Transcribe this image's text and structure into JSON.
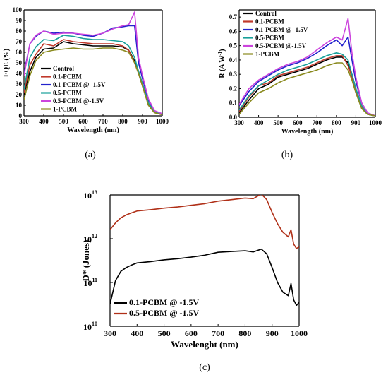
{
  "panel_labels": [
    "(a)",
    "(b)",
    "(c)"
  ],
  "chart_data": [
    {
      "type": "line",
      "xlabel": "Wavelength (nm)",
      "ylabel": "EQE (%)",
      "xlim": [
        300,
        1000
      ],
      "ylim": [
        0,
        100
      ],
      "xticks": [
        300,
        400,
        500,
        600,
        700,
        800,
        900,
        1000
      ],
      "yticks": [
        0,
        10,
        20,
        30,
        40,
        50,
        60,
        70,
        80,
        90,
        100
      ],
      "legend_position": "lower-left",
      "x": [
        300,
        330,
        360,
        400,
        450,
        500,
        550,
        600,
        650,
        700,
        750,
        800,
        830,
        860,
        880,
        900,
        930,
        960,
        1000
      ],
      "series": [
        {
          "name": "Control",
          "color": "#000000",
          "values": [
            20,
            42,
            55,
            63,
            64,
            70,
            68,
            67,
            66,
            66,
            66,
            65,
            62,
            52,
            42,
            30,
            12,
            4,
            1
          ]
        },
        {
          "name": "0.1-PCBM",
          "color": "#c0392b",
          "values": [
            22,
            48,
            58,
            68,
            66,
            72,
            70,
            69,
            68,
            68,
            68,
            66,
            62,
            50,
            40,
            28,
            10,
            3,
            1
          ]
        },
        {
          "name": "0.1-PCBM @ -1.5V",
          "color": "#2222cc",
          "values": [
            40,
            68,
            75,
            80,
            78,
            79,
            78,
            76,
            75,
            78,
            83,
            84,
            85,
            85,
            50,
            35,
            15,
            4,
            2
          ]
        },
        {
          "name": "0.5-PCBM",
          "color": "#18a09a",
          "values": [
            25,
            55,
            65,
            72,
            71,
            76,
            75,
            73,
            72,
            72,
            71,
            70,
            66,
            55,
            42,
            30,
            12,
            4,
            1
          ]
        },
        {
          "name": "0.5-PCBM @-1.5V",
          "color": "#cc44dd",
          "values": [
            38,
            68,
            76,
            80,
            77,
            78,
            78,
            77,
            76,
            78,
            82,
            85,
            86,
            98,
            55,
            38,
            16,
            5,
            2
          ]
        },
        {
          "name": "1-PCBM",
          "color": "#8a8a1e",
          "values": [
            15,
            38,
            52,
            60,
            62,
            63,
            64,
            63,
            63,
            64,
            64,
            62,
            60,
            50,
            40,
            28,
            10,
            3,
            1
          ]
        }
      ]
    },
    {
      "type": "line",
      "xlabel": "Wavelength (nm)",
      "ylabel": "R (A W",
      "ylabel_sup": "-1",
      "ylabel_end": ")",
      "xlim": [
        300,
        1000
      ],
      "ylim": [
        0,
        0.75
      ],
      "xticks": [
        300,
        400,
        500,
        600,
        700,
        800,
        900,
        1000
      ],
      "yticks": [
        "0.0",
        "0.1",
        "0.2",
        "0.3",
        "0.4",
        "0.5",
        "0.6",
        "0.7"
      ],
      "legend_position": "top-left",
      "x": [
        300,
        350,
        400,
        450,
        500,
        550,
        600,
        650,
        700,
        750,
        800,
        830,
        860,
        880,
        900,
        930,
        960,
        1000
      ],
      "series": [
        {
          "name": "Control",
          "color": "#000000",
          "values": [
            0.03,
            0.12,
            0.2,
            0.23,
            0.28,
            0.3,
            0.32,
            0.34,
            0.37,
            0.4,
            0.42,
            0.42,
            0.38,
            0.3,
            0.2,
            0.08,
            0.02,
            0.01
          ]
        },
        {
          "name": "0.1-PCBM",
          "color": "#c0392b",
          "values": [
            0.04,
            0.14,
            0.22,
            0.24,
            0.29,
            0.31,
            0.33,
            0.35,
            0.38,
            0.41,
            0.43,
            0.43,
            0.36,
            0.28,
            0.18,
            0.07,
            0.02,
            0.01
          ]
        },
        {
          "name": "0.1-PCBM @ -1.5V",
          "color": "#2222cc",
          "values": [
            0.08,
            0.18,
            0.25,
            0.29,
            0.33,
            0.36,
            0.38,
            0.41,
            0.45,
            0.5,
            0.54,
            0.5,
            0.56,
            0.4,
            0.25,
            0.1,
            0.03,
            0.01
          ]
        },
        {
          "name": "0.5-PCBM",
          "color": "#18a09a",
          "values": [
            0.05,
            0.15,
            0.22,
            0.26,
            0.3,
            0.33,
            0.35,
            0.37,
            0.4,
            0.43,
            0.45,
            0.44,
            0.4,
            0.3,
            0.2,
            0.08,
            0.02,
            0.01
          ]
        },
        {
          "name": "0.5-PCBM @-1.5V",
          "color": "#cc44dd",
          "values": [
            0.09,
            0.2,
            0.26,
            0.3,
            0.34,
            0.37,
            0.39,
            0.42,
            0.47,
            0.52,
            0.56,
            0.54,
            0.69,
            0.45,
            0.28,
            0.1,
            0.03,
            0.01
          ]
        },
        {
          "name": "1-PCBM",
          "color": "#8a8a1e",
          "values": [
            0.02,
            0.1,
            0.17,
            0.2,
            0.24,
            0.27,
            0.29,
            0.31,
            0.33,
            0.36,
            0.38,
            0.38,
            0.33,
            0.26,
            0.17,
            0.06,
            0.02,
            0.01
          ]
        }
      ]
    },
    {
      "type": "line",
      "xlabel": "Wavelenght (nm)",
      "ylabel": "D* (Jones)",
      "xlim": [
        300,
        1000
      ],
      "ylim": [
        10000000000.0,
        10000000000000.0
      ],
      "yscale": "log",
      "xticks": [
        300,
        400,
        500,
        600,
        700,
        800,
        900,
        1000
      ],
      "yticks": [
        {
          "base": "10",
          "exp": "10",
          "value": 10000000000.0
        },
        {
          "base": "10",
          "exp": "11",
          "value": 100000000000.0
        },
        {
          "base": "10",
          "exp": "12",
          "value": 1000000000000.0
        },
        {
          "base": "10",
          "exp": "13",
          "value": 10000000000000.0
        }
      ],
      "legend_position": "lower-left",
      "x": [
        300,
        320,
        340,
        360,
        380,
        400,
        450,
        500,
        550,
        600,
        650,
        700,
        750,
        800,
        830,
        860,
        880,
        900,
        920,
        940,
        960,
        970,
        980,
        990,
        1000
      ],
      "series": [
        {
          "name": "0.1-PCBM @ -1.5V",
          "color": "#000000",
          "values": [
            32000000000.0,
            110000000000.0,
            180000000000.0,
            220000000000.0,
            250000000000.0,
            280000000000.0,
            300000000000.0,
            330000000000.0,
            350000000000.0,
            380000000000.0,
            420000000000.0,
            490000000000.0,
            510000000000.0,
            530000000000.0,
            500000000000.0,
            580000000000.0,
            450000000000.0,
            220000000000.0,
            100000000000.0,
            60000000000.0,
            50000000000.0,
            95000000000.0,
            40000000000.0,
            30000000000.0,
            35000000000.0
          ]
        },
        {
          "name": "0.5-PCBM @ -1.5V",
          "color": "#b03018",
          "values": [
            1600000000000.0,
            2300000000000.0,
            3000000000000.0,
            3500000000000.0,
            3900000000000.0,
            4300000000000.0,
            4600000000000.0,
            5000000000000.0,
            5300000000000.0,
            5800000000000.0,
            6300000000000.0,
            7200000000000.0,
            7800000000000.0,
            8500000000000.0,
            8200000000000.0,
            10500000000000.0,
            7800000000000.0,
            4000000000000.0,
            2200000000000.0,
            1400000000000.0,
            1100000000000.0,
            1600000000000.0,
            750000000000.0,
            600000000000.0,
            650000000000.0
          ]
        }
      ]
    }
  ]
}
